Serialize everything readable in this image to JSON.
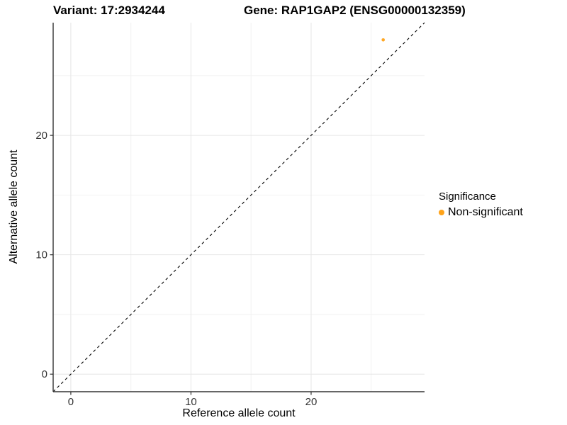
{
  "chart_data": {
    "type": "scatter",
    "title_left": "Variant: 17:2934244",
    "title_right": "Gene: RAP1GAP2 (ENSG00000132359)",
    "xlabel": "Reference allele count",
    "ylabel": "Alternative allele count",
    "xlim": [
      -1.47,
      29.44
    ],
    "ylim": [
      -1.47,
      29.44
    ],
    "x_ticks": [
      0,
      10,
      20
    ],
    "x_minor_ticks": [
      5,
      15,
      25
    ],
    "y_ticks": [
      0,
      10,
      20
    ],
    "y_minor_ticks": [
      5,
      15,
      25
    ],
    "grid": {
      "major": true,
      "minor": true
    },
    "points": [
      {
        "x": 26,
        "y": 28,
        "significance": "Non-significant",
        "color": "#FFA319",
        "radius": 2.3
      }
    ],
    "reference_line": {
      "slope": 1,
      "intercept": 0,
      "style": "dashed",
      "color": "#000000"
    },
    "legend": {
      "title": "Significance",
      "position": "right-center",
      "items": [
        {
          "label": "Non-significant",
          "color": "#FFA319"
        }
      ]
    },
    "colors": {
      "axis_line": "#333333",
      "tick_label": "#333333",
      "grid_major": "#e6e6e6",
      "grid_minor": "#f2f2f2",
      "background": "#ffffff"
    }
  }
}
